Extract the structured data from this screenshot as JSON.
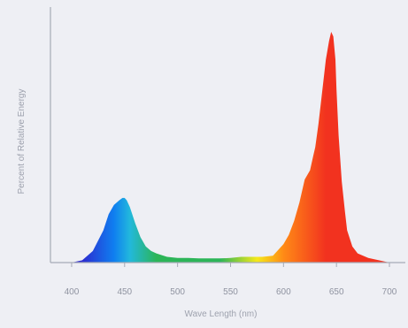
{
  "chart_data": {
    "type": "area",
    "title": "",
    "xlabel": "Wave Length (nm)",
    "ylabel": "Percent of Relative Energy",
    "x_ticks": [
      400,
      450,
      500,
      550,
      600,
      650,
      700
    ],
    "x_tick_labels": [
      "400",
      "450",
      "500",
      "550",
      "600",
      "650",
      "700"
    ],
    "xlim": [
      380,
      710
    ],
    "ylim": [
      0,
      100
    ],
    "grid": false,
    "legend": "none",
    "series": [
      {
        "x": [
          400,
          410,
          420,
          430,
          435,
          440,
          445,
          448,
          450,
          452,
          455,
          460,
          465,
          470,
          475,
          480,
          490,
          500,
          510,
          520,
          530,
          540,
          550,
          560,
          570,
          580,
          590,
          600,
          605,
          610,
          615,
          620,
          625,
          628,
          630,
          633,
          636,
          640,
          643,
          645,
          647,
          649,
          650,
          652,
          655,
          658,
          660,
          665,
          670,
          680,
          690,
          700
        ],
        "y": [
          0,
          1,
          5,
          14,
          21,
          25,
          27,
          28,
          28,
          27,
          24,
          17,
          11,
          7,
          5,
          4,
          2.5,
          2,
          2,
          1.8,
          1.8,
          1.8,
          2,
          2.5,
          2.5,
          2.5,
          3,
          8,
          12,
          18,
          26,
          36,
          40,
          46,
          50,
          60,
          72,
          88,
          96,
          100,
          98,
          88,
          75,
          55,
          35,
          22,
          14,
          7,
          4,
          2,
          1,
          0
        ]
      }
    ],
    "colors": {
      "background": "#eeeff4",
      "axis": "#a6aab6",
      "violet": "#2c2bd0",
      "blue": "#0f7ff0",
      "cyan": "#22b8dc",
      "green": "#2cb558",
      "yellow": "#f5e91a",
      "orange": "#ff8a16",
      "red": "#f2321f"
    }
  }
}
